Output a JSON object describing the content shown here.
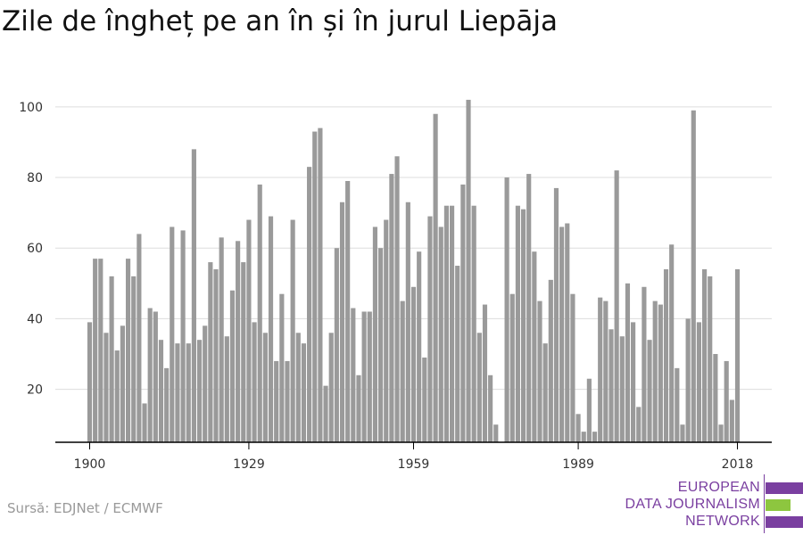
{
  "title": "Zile de îngheț pe an în și în jurul Liepāja",
  "source": "Sursă: EDJNet / ECMWF",
  "logo": {
    "line1": "EUROPEAN",
    "line2": "DATA JOURNALISM",
    "line3": "NETWORK",
    "colors": {
      "purple": "#7a3fa0",
      "green": "#8dc63f"
    }
  },
  "chart_data": {
    "type": "bar",
    "title": "Zile de îngheț pe an în și în jurul Liepāja",
    "xlabel": "",
    "ylabel": "",
    "x_start": 1900,
    "x_end": 2018,
    "x_ticks": [
      1900,
      1929,
      1959,
      1989,
      2018
    ],
    "y_ticks": [
      20,
      40,
      60,
      80,
      100
    ],
    "ylim": [
      5,
      104
    ],
    "grid": true,
    "bar_color": "#9a9a9a",
    "values": [
      39,
      57,
      57,
      36,
      52,
      31,
      38,
      57,
      52,
      64,
      16,
      43,
      42,
      34,
      26,
      66,
      33,
      65,
      33,
      88,
      34,
      38,
      56,
      54,
      63,
      35,
      48,
      62,
      56,
      68,
      39,
      78,
      36,
      69,
      28,
      47,
      28,
      68,
      36,
      33,
      83,
      93,
      94,
      21,
      36,
      60,
      73,
      79,
      43,
      24,
      42,
      42,
      66,
      60,
      68,
      81,
      86,
      45,
      73,
      49,
      59,
      29,
      69,
      98,
      66,
      72,
      72,
      55,
      78,
      102,
      72,
      36,
      44,
      24,
      10,
      5,
      80,
      47,
      72,
      71,
      81,
      59,
      45,
      33,
      51,
      77,
      66,
      67,
      47,
      13,
      8,
      23,
      8,
      46,
      45,
      37,
      82,
      35,
      50,
      39,
      15,
      49,
      34,
      45,
      44,
      54,
      61,
      26,
      10,
      40,
      99,
      39,
      54,
      52,
      30,
      10,
      28,
      17,
      54
    ]
  }
}
